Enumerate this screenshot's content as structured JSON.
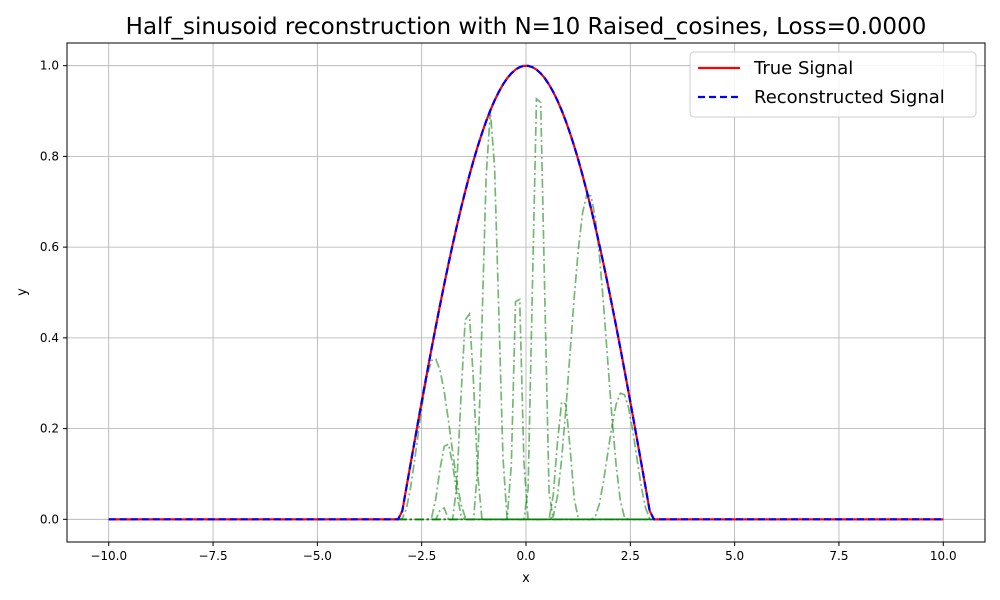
{
  "chart_data": {
    "type": "line",
    "title": "Half_sinusoid reconstruction with N=10 Raised_cosines, Loss=0.0000",
    "xlabel": "x",
    "ylabel": "y",
    "xlim": [
      -11.0,
      11.0
    ],
    "ylim": [
      -0.05,
      1.05
    ],
    "xticks": [
      -10.0,
      -7.5,
      -5.0,
      -2.5,
      0.0,
      2.5,
      5.0,
      7.5,
      10.0
    ],
    "xtick_labels": [
      "−10.0",
      "−7.5",
      "−5.0",
      "−2.5",
      "0.0",
      "2.5",
      "5.0",
      "7.5",
      "10.0"
    ],
    "yticks": [
      0.0,
      0.2,
      0.4,
      0.6,
      0.8,
      1.0
    ],
    "ytick_labels": [
      "0.0",
      "0.2",
      "0.4",
      "0.6",
      "0.8",
      "1.0"
    ],
    "grid": true,
    "legend_position": "top-right",
    "signal_support": [
      -3.0,
      3.0
    ],
    "series": [
      {
        "name": "True Signal",
        "color": "#ff0000",
        "style": "solid",
        "function": "half-sinusoid cos(pi*x/6) on [-3,3], 0 elsewhere"
      },
      {
        "name": "Reconstructed Signal",
        "color": "#0000ff",
        "style": "dashed",
        "function": "sum of raised-cosine components"
      }
    ],
    "components": {
      "color": "#008000",
      "style": "dash-dot",
      "count": 10,
      "items": [
        {
          "center": -2.2,
          "width": 0.8,
          "amplitude": 0.355
        },
        {
          "center": -1.9,
          "width": 0.4,
          "amplitude": 0.17
        },
        {
          "center": -1.4,
          "width": 0.35,
          "amplitude": 0.47
        },
        {
          "center": -0.85,
          "width": 0.4,
          "amplitude": 0.9
        },
        {
          "center": -0.2,
          "width": 0.22,
          "amplitude": 0.55
        },
        {
          "center": 0.3,
          "width": 0.3,
          "amplitude": 0.99
        },
        {
          "center": 0.9,
          "width": 0.35,
          "amplitude": 0.27
        },
        {
          "center": 1.5,
          "width": 0.9,
          "amplitude": 0.72
        },
        {
          "center": 2.3,
          "width": 0.7,
          "amplitude": 0.28
        },
        {
          "center": -2.0,
          "width": 0.15,
          "amplitude": 0.03
        }
      ]
    }
  }
}
